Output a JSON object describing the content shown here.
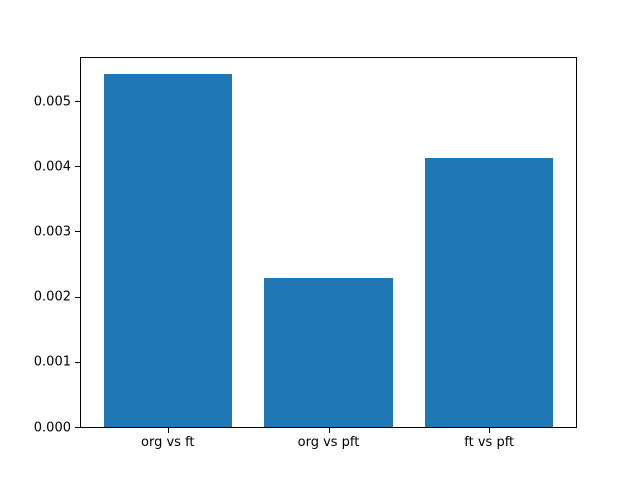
{
  "chart_data": {
    "type": "bar",
    "title": "",
    "xlabel": "",
    "ylabel": "",
    "categories": [
      "org vs ft",
      "org vs pft",
      "ft vs pft"
    ],
    "values": [
      0.00541,
      0.00229,
      0.00412
    ],
    "x": [
      0,
      1,
      2
    ],
    "bar_width": 0.8,
    "xlim": [
      -0.54,
      2.54
    ],
    "ylim": [
      0,
      0.00566
    ],
    "ytick_values": [
      0,
      0.001,
      0.002,
      0.003,
      0.004,
      0.005
    ],
    "ytick_labels": [
      "0.000",
      "0.001",
      "0.002",
      "0.003",
      "0.004",
      "0.005"
    ],
    "bar_color": "#1f77b4",
    "axis_color": "#000000",
    "background_color": "#ffffff",
    "grid": false,
    "legend": null
  }
}
